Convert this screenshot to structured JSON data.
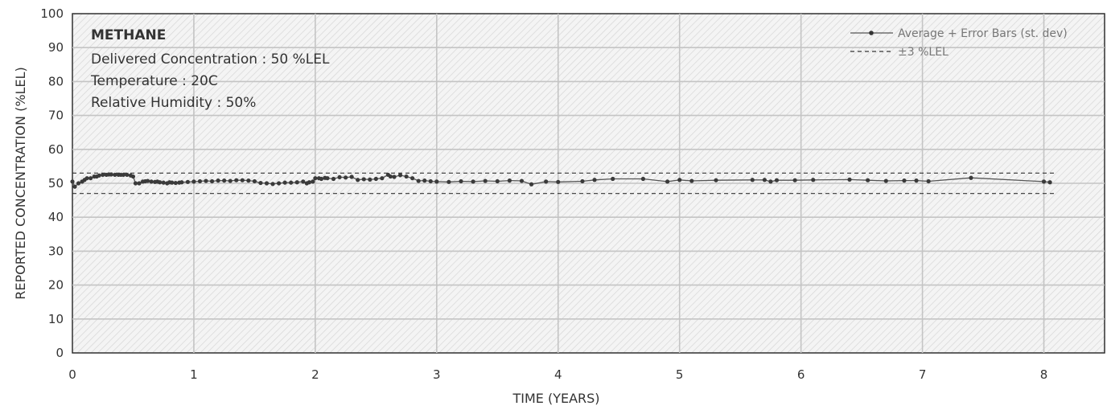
{
  "chart_data": {
    "type": "line",
    "xlabel": "TIME (YEARS)",
    "ylabel": "REPORTED CONCENTRATION  (%LEL)",
    "xlim": [
      0,
      8.5
    ],
    "ylim": [
      0,
      100
    ],
    "xticks": [
      "0",
      "1",
      "2",
      "3",
      "4",
      "5",
      "6",
      "7",
      "8"
    ],
    "yticks": [
      "0",
      "10",
      "20",
      "30",
      "40",
      "50",
      "60",
      "70",
      "80",
      "90",
      "100"
    ],
    "grid": true,
    "legend_position": "top-right",
    "annotation": {
      "title": "METHANE",
      "lines": [
        "Delivered Concentration : 50 %LEL",
        "Temperature : 20C",
        "Relative Humidity : 50%"
      ]
    },
    "legend": [
      {
        "label": "Average + Error Bars (st. dev)",
        "style": "solid-marker"
      },
      {
        "label": "±3 %LEL",
        "style": "dashed"
      }
    ],
    "reference_lines": {
      "upper": 53,
      "lower": 47
    },
    "series": [
      {
        "name": "Average + Error Bars (st. dev)",
        "color": "#3a3a3a",
        "x": [
          0.0,
          0.02,
          0.05,
          0.08,
          0.1,
          0.12,
          0.15,
          0.18,
          0.2,
          0.22,
          0.25,
          0.28,
          0.3,
          0.32,
          0.35,
          0.38,
          0.4,
          0.42,
          0.45,
          0.48,
          0.5,
          0.52,
          0.55,
          0.58,
          0.6,
          0.62,
          0.65,
          0.68,
          0.7,
          0.72,
          0.75,
          0.78,
          0.8,
          0.82,
          0.85,
          0.88,
          0.9,
          0.95,
          1.0,
          1.05,
          1.1,
          1.15,
          1.2,
          1.25,
          1.3,
          1.35,
          1.4,
          1.45,
          1.5,
          1.55,
          1.6,
          1.65,
          1.7,
          1.75,
          1.8,
          1.85,
          1.9,
          1.93,
          1.95,
          1.98,
          2.0,
          2.03,
          2.05,
          2.08,
          2.1,
          2.15,
          2.2,
          2.25,
          2.3,
          2.35,
          2.4,
          2.45,
          2.5,
          2.55,
          2.6,
          2.62,
          2.65,
          2.7,
          2.75,
          2.8,
          2.85,
          2.9,
          2.95,
          3.0,
          3.1,
          3.2,
          3.3,
          3.4,
          3.5,
          3.6,
          3.7,
          3.78,
          3.9,
          4.0,
          4.2,
          4.3,
          4.45,
          4.7,
          4.9,
          5.0,
          5.1,
          5.3,
          5.6,
          5.7,
          5.75,
          5.8,
          5.95,
          6.1,
          6.4,
          6.55,
          6.7,
          6.85,
          6.95,
          7.05,
          7.4,
          8.0,
          8.05
        ],
        "values": [
          50.5,
          49,
          50,
          50.5,
          51,
          51.5,
          51.5,
          52,
          52,
          52.3,
          52.5,
          52.5,
          52.6,
          52.6,
          52.5,
          52.5,
          52.5,
          52.5,
          52.5,
          52.3,
          52,
          50,
          50,
          50.5,
          50.6,
          50.7,
          50.5,
          50.4,
          50.5,
          50.3,
          50.2,
          50,
          50.3,
          50.2,
          50.1,
          50.2,
          50.3,
          50.4,
          50.5,
          50.6,
          50.7,
          50.6,
          50.8,
          50.8,
          50.7,
          50.9,
          50.9,
          50.8,
          50.6,
          50.1,
          50,
          49.8,
          50,
          50.2,
          50.2,
          50.3,
          50.5,
          50,
          50.3,
          50.5,
          51.5,
          51.5,
          51.3,
          51.6,
          51.5,
          51.3,
          51.8,
          51.7,
          51.9,
          51,
          51.2,
          51.1,
          51.3,
          51.5,
          52.5,
          52,
          51.9,
          52.4,
          52,
          51.5,
          50.7,
          50.8,
          50.6,
          50.5,
          50.4,
          50.6,
          50.5,
          50.7,
          50.6,
          50.8,
          50.7,
          49.7,
          50.5,
          50.4,
          50.6,
          51,
          51.3,
          51.3,
          50.5,
          51,
          50.7,
          50.9,
          51,
          51,
          50.5,
          50.9,
          50.9,
          51,
          51.1,
          50.9,
          50.7,
          50.8,
          50.8,
          50.6,
          51.6,
          50.5,
          50.3
        ]
      }
    ]
  }
}
